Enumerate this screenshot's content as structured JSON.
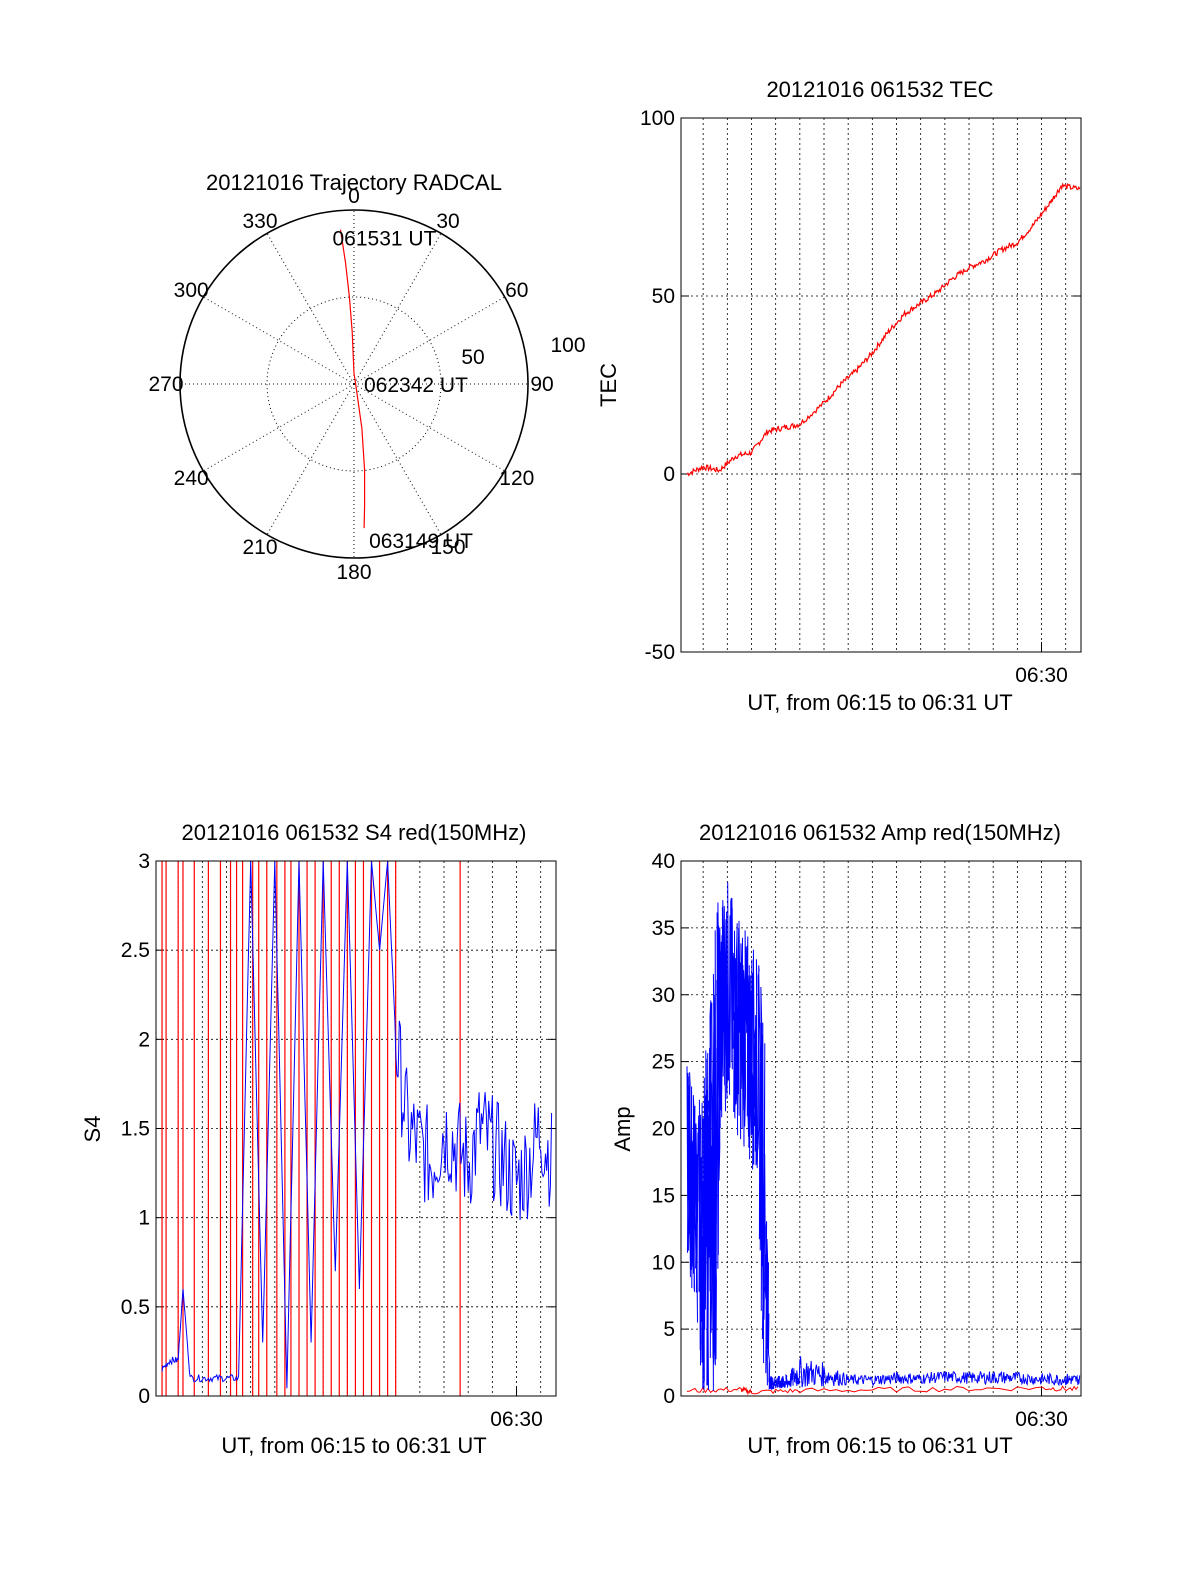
{
  "colors": {
    "red": "#ff0000",
    "blue": "#0000ff",
    "axis": "#000000"
  },
  "chart_data": [
    {
      "id": "polar",
      "type": "scatter",
      "title": "20121016 Trajectory RADCAL",
      "azimuth_labels": [
        "0",
        "30",
        "60",
        "90",
        "120",
        "150",
        "180",
        "210",
        "240",
        "270",
        "300",
        "330"
      ],
      "radial_labels": [
        "50",
        "100"
      ],
      "radial_range": [
        0,
        100
      ],
      "trajectory": {
        "name": "",
        "azimuth": [
          355,
          356,
          357,
          358,
          0,
          20,
          170,
          173,
          175,
          176
        ],
        "distance": [
          89,
          70,
          50,
          30,
          6,
          2,
          26,
          50,
          70,
          83
        ]
      },
      "annotations": [
        {
          "text": "061531 UT",
          "azimuth": 355,
          "distance": 89
        },
        {
          "text": "062342 UT",
          "azimuth": 0,
          "distance": 0
        },
        {
          "text": "063149 UT",
          "azimuth": 176,
          "distance": 83
        }
      ]
    },
    {
      "id": "tec",
      "type": "line",
      "title": "20121016 061532 TEC",
      "ylabel": "TEC",
      "xlabel": "UT, from 06:15 to 06:31 UT",
      "xlim": [
        "06:15:05",
        "06:31:38"
      ],
      "ylim": [
        -50,
        100
      ],
      "yticks": [
        "-50",
        "0",
        "50",
        "100"
      ],
      "xticks": [
        "06:30"
      ],
      "grid": true,
      "series": [
        {
          "name": "",
          "color": "red",
          "x": [
            "06:15:20",
            "06:16:00",
            "06:16:40",
            "06:17:20",
            "06:18:00",
            "06:18:40",
            "06:19:20",
            "06:20:00",
            "06:21:00",
            "06:21:40",
            "06:22:20",
            "06:23:00",
            "06:23:40",
            "06:24:20",
            "06:25:00",
            "06:25:40",
            "06:26:20",
            "06:27:00",
            "06:27:40",
            "06:28:20",
            "06:29:00",
            "06:29:40",
            "06:30:20",
            "06:30:50",
            "06:31:35"
          ],
          "y": [
            0,
            2,
            1,
            5,
            6,
            12,
            13,
            14,
            20,
            25,
            29,
            34,
            40,
            45,
            48,
            51,
            55,
            58,
            60,
            63,
            65,
            70,
            76,
            81,
            80
          ]
        }
      ]
    },
    {
      "id": "s4",
      "type": "line",
      "title": "20121016 061532 S4 red(150MHz)",
      "ylabel": "S4",
      "xlabel": "UT, from 06:15 to 06:31 UT",
      "xlim": [
        "06:15:05",
        "06:31:38"
      ],
      "ylim": [
        0,
        3
      ],
      "yticks": [
        "0",
        "0.5",
        "1",
        "1.5",
        "2",
        "2.5",
        "3"
      ],
      "xticks": [
        "06:30"
      ],
      "grid": true,
      "series": [
        {
          "name": "",
          "color": "red",
          "spikes_x": [
            "06:15:20",
            "06:15:30",
            "06:16:00",
            "06:16:12",
            "06:16:40",
            "06:17:15",
            "06:17:45",
            "06:18:10",
            "06:18:25",
            "06:18:40",
            "06:19:05",
            "06:19:20",
            "06:19:40",
            "06:20:05",
            "06:20:25",
            "06:20:40",
            "06:21:00",
            "06:21:20",
            "06:21:40",
            "06:22:00",
            "06:22:20",
            "06:22:40",
            "06:23:00",
            "06:23:20",
            "06:23:40",
            "06:24:00",
            "06:24:20",
            "06:24:40",
            "06:25:00",
            "06:27:40"
          ],
          "spike_top": 3
        },
        {
          "name": "",
          "color": "blue",
          "x": [
            "06:15:20",
            "06:15:40",
            "06:16:00",
            "06:16:12",
            "06:16:30",
            "06:17:00",
            "06:17:30",
            "06:18:00",
            "06:18:30",
            "06:19:00",
            "06:19:30",
            "06:20:00",
            "06:20:30",
            "06:21:00",
            "06:21:30",
            "06:22:00",
            "06:22:30",
            "06:23:00",
            "06:23:30",
            "06:24:00",
            "06:24:20",
            "06:24:40",
            "06:25:00",
            "06:25:30",
            "06:26:00",
            "06:26:30",
            "06:27:00",
            "06:27:30",
            "06:28:00",
            "06:28:30",
            "06:29:00",
            "06:29:30",
            "06:30:00",
            "06:30:30",
            "06:31:00",
            "06:31:30"
          ],
          "y": [
            0.15,
            0.2,
            0.2,
            0.6,
            0.1,
            0.1,
            0.1,
            0.1,
            0.1,
            3,
            0.3,
            3,
            0.05,
            3,
            0.3,
            3,
            0.7,
            3,
            0.6,
            3,
            2.5,
            3,
            2.0,
            1.5,
            1.4,
            1.3,
            1.5,
            1.4,
            1.3,
            1.5,
            1.4,
            1.3,
            1.2,
            1.3,
            1.5,
            1.3
          ]
        }
      ]
    },
    {
      "id": "amp",
      "type": "line",
      "title": "20121016 061532 Amp red(150MHz)",
      "ylabel": "Amp",
      "xlabel": "UT, from 06:15 to 06:31 UT",
      "xlim": [
        "06:15:05",
        "06:31:38"
      ],
      "ylim": [
        0,
        40
      ],
      "yticks": [
        "0",
        "5",
        "10",
        "15",
        "20",
        "25",
        "30",
        "35",
        "40"
      ],
      "xticks": [
        "06:30"
      ],
      "grid": true,
      "series": [
        {
          "name": "",
          "color": "red",
          "x": [
            "06:15:20",
            "06:17:30",
            "06:18:00",
            "06:20:00",
            "06:25:00",
            "06:30:00",
            "06:31:35"
          ],
          "y": [
            0.4,
            0.5,
            0.3,
            0.4,
            0.5,
            0.6,
            0.5
          ]
        },
        {
          "name": "",
          "color": "blue",
          "x": [
            "06:15:20",
            "06:15:30",
            "06:15:45",
            "06:16:00",
            "06:16:15",
            "06:16:30",
            "06:16:45",
            "06:17:00",
            "06:17:15",
            "06:17:30",
            "06:17:45",
            "06:18:00",
            "06:18:15",
            "06:18:30",
            "06:18:45",
            "06:19:00",
            "06:19:15",
            "06:19:30",
            "06:20:00",
            "06:21:00",
            "06:22:00",
            "06:23:00",
            "06:24:00",
            "06:25:00",
            "06:26:00",
            "06:27:00",
            "06:28:00",
            "06:29:00",
            "06:30:00",
            "06:31:00",
            "06:31:35"
          ],
          "y_low": [
            10,
            8,
            5,
            0,
            0,
            0,
            20,
            22,
            20,
            19,
            18,
            17,
            16,
            0.5,
            0.5,
            0.5,
            0.5,
            0.5,
            0.6,
            0.7,
            0.8,
            0.8,
            0.9,
            0.9,
            1.0,
            0.9,
            0.9,
            0.9,
            0.8,
            0.8,
            0.8
          ],
          "y_high": [
            26,
            24,
            22,
            23,
            30,
            37,
            38,
            39,
            37,
            36,
            35,
            34,
            33,
            30,
            1.5,
            1.5,
            1.5,
            1.6,
            3.0,
            2.5,
            1.6,
            1.6,
            1.8,
            1.7,
            1.9,
            1.8,
            1.9,
            1.8,
            1.7,
            1.7,
            1.6
          ]
        }
      ]
    }
  ]
}
